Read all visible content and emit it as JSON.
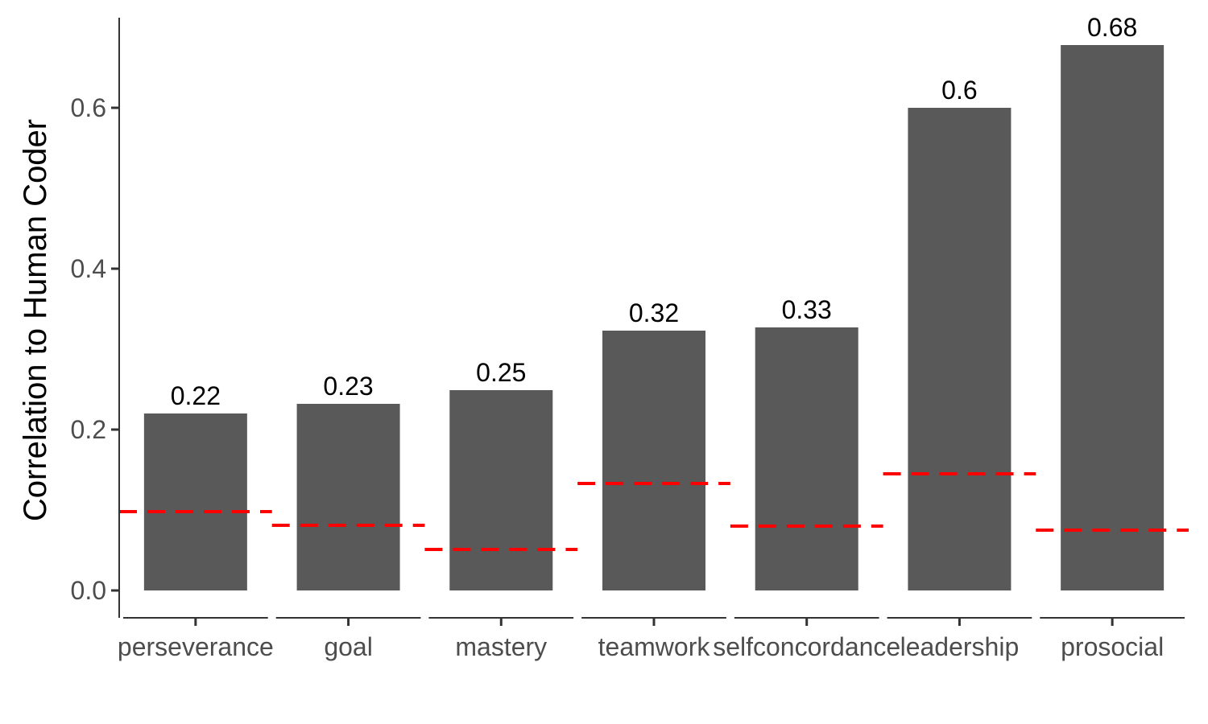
{
  "chart_data": {
    "type": "bar",
    "title": "",
    "xlabel": "",
    "ylabel": "Correlation to Human Coder",
    "ylim": [
      -0.035,
      0.715
    ],
    "yticks": [
      0.0,
      0.2,
      0.4,
      0.6
    ],
    "ytick_labels": [
      "0.0",
      "0.2",
      "0.4",
      "0.6"
    ],
    "categories": [
      "perseverance",
      "goal",
      "mastery",
      "teamwork",
      "selfconcordance",
      "leadership",
      "prosocial"
    ],
    "values": [
      0.22,
      0.232,
      0.249,
      0.323,
      0.327,
      0.6,
      0.678
    ],
    "value_labels": [
      "0.22",
      "0.23",
      "0.25",
      "0.32",
      "0.33",
      "0.6",
      "0.68"
    ],
    "baseline_values": [
      0.098,
      0.081,
      0.051,
      0.133,
      0.08,
      0.145,
      0.075
    ],
    "grid": false,
    "legend": "none",
    "colors": {
      "bar": "#595959",
      "baseline": "#ff0000",
      "axis": "#333333",
      "tick_text": "#4d4d4d"
    }
  }
}
